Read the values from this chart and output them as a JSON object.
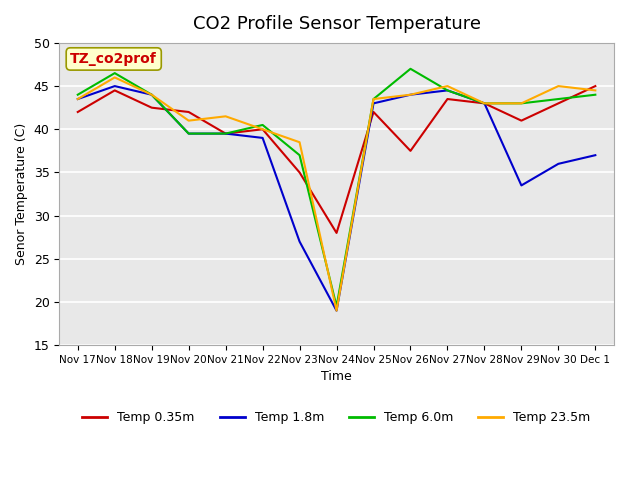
{
  "title": "CO2 Profile Sensor Temperature",
  "ylabel": "Senor Temperature (C)",
  "xlabel": "Time",
  "annotation": "TZ_co2prof",
  "ylim": [
    15,
    50
  ],
  "yticks": [
    15,
    20,
    25,
    30,
    35,
    40,
    45,
    50
  ],
  "background_color": "#ffffff",
  "plot_bg_color": "#e8e8e8",
  "colors": {
    "red": "#cc0000",
    "blue": "#0000cc",
    "green": "#00bb00",
    "orange": "#ffaa00"
  },
  "legend_labels": [
    "Temp 0.35m",
    "Temp 1.8m",
    "Temp 6.0m",
    "Temp 23.5m"
  ],
  "x_tick_labels": [
    "Nov 17",
    "Nov 18",
    "Nov 19",
    "Nov 20",
    "Nov 21",
    "Nov 22",
    "Nov 23",
    "Nov 24",
    "Nov 25",
    "Nov 26",
    "Nov 27",
    "Nov 28",
    "Nov 29",
    "Nov 30",
    "Dec 1"
  ],
  "num_points": 15,
  "series": {
    "red": [
      42,
      44.5,
      42.5,
      42,
      39.5,
      40,
      35,
      28,
      42,
      37.5,
      43.5,
      43,
      41,
      43,
      45
    ],
    "blue": [
      43.5,
      45,
      44,
      39.5,
      39.5,
      39,
      27,
      19,
      43,
      44,
      44.5,
      43,
      33.5,
      36,
      37
    ],
    "green": [
      44,
      46.5,
      44,
      39.5,
      39.5,
      40.5,
      37,
      19.5,
      43.5,
      47,
      44.5,
      43,
      43,
      43.5,
      44
    ],
    "orange": [
      43.5,
      46,
      44,
      41,
      41.5,
      40,
      38.5,
      19,
      43.5,
      44,
      45,
      43,
      43,
      45,
      44.5
    ]
  }
}
